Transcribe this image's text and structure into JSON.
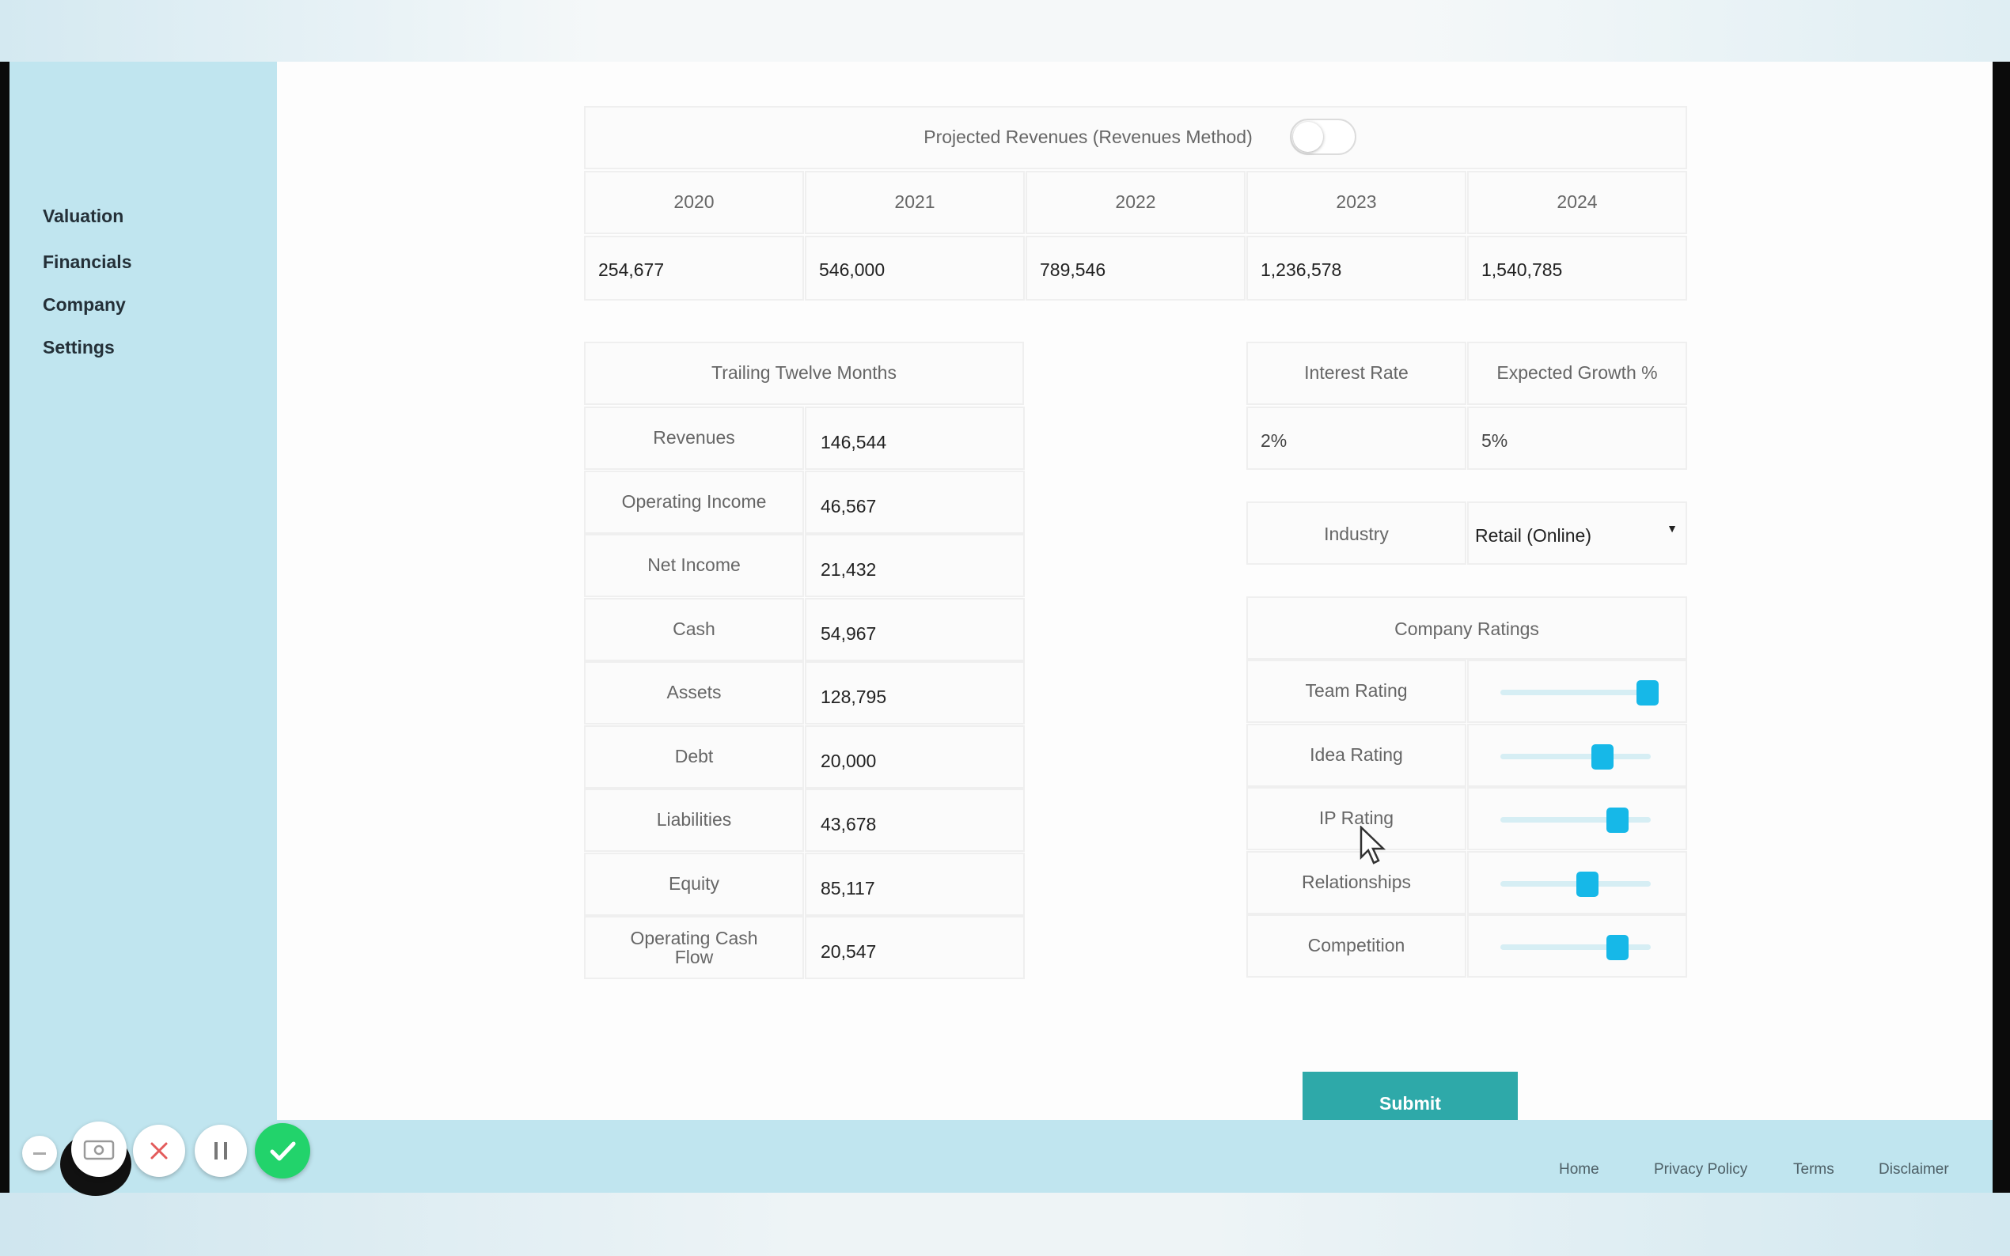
{
  "sidebar": {
    "items": [
      {
        "label": "Valuation"
      },
      {
        "label": "Financials"
      },
      {
        "label": "Company"
      },
      {
        "label": "Settings"
      }
    ]
  },
  "projected": {
    "title": "Projected Revenues (Revenues Method)",
    "toggle_on": false,
    "years": [
      "2020",
      "2021",
      "2022",
      "2023",
      "2024"
    ],
    "values": [
      "254,677",
      "546,000",
      "789,546",
      "1,236,578",
      "1,540,785"
    ]
  },
  "ttm": {
    "title": "Trailing Twelve Months",
    "rows": [
      {
        "label": "Revenues",
        "value": "146,544"
      },
      {
        "label": "Operating Income",
        "value": "46,567"
      },
      {
        "label": "Net Income",
        "value": "21,432"
      },
      {
        "label": "Cash",
        "value": "54,967"
      },
      {
        "label": "Assets",
        "value": "128,795"
      },
      {
        "label": "Debt",
        "value": "20,000"
      },
      {
        "label": "Liabilities",
        "value": "43,678"
      },
      {
        "label": "Equity",
        "value": "85,117"
      },
      {
        "label": "Operating Cash Flow",
        "value": "20,547"
      }
    ]
  },
  "rates": {
    "interest_label": "Interest Rate",
    "growth_label": "Expected Growth %",
    "interest_value": "2%",
    "growth_value": "5%"
  },
  "industry": {
    "label": "Industry",
    "selected": "Retail (Online)"
  },
  "ratings": {
    "title": "Company Ratings",
    "items": [
      {
        "label": "Team Rating",
        "level": 0.98
      },
      {
        "label": "Idea Rating",
        "level": 0.68
      },
      {
        "label": "IP Rating",
        "level": 0.78
      },
      {
        "label": "Relationships",
        "level": 0.58
      },
      {
        "label": "Competition",
        "level": 0.78
      }
    ]
  },
  "submit_label": "Submit",
  "footer": {
    "links": [
      "Home",
      "Privacy Policy",
      "Terms",
      "Disclaimer"
    ]
  },
  "colors": {
    "sidebar_bg": "#c0e5ef",
    "submit_bg": "#2ea9a9",
    "slider_thumb": "#16b8e8",
    "record_ok": "#22d36b"
  }
}
